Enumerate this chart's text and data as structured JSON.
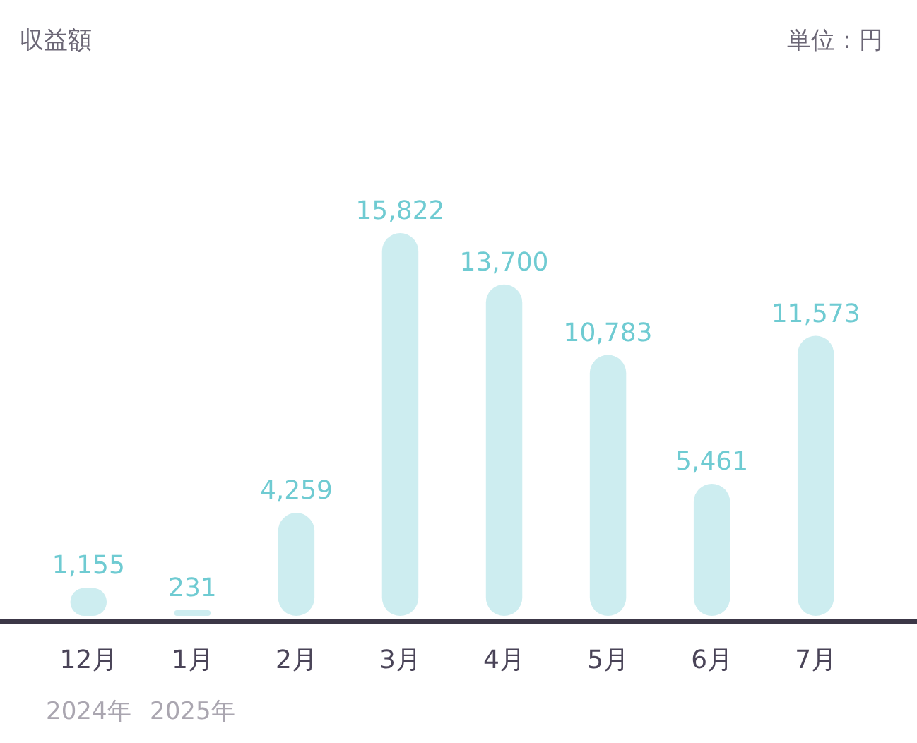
{
  "chart_data": {
    "type": "bar",
    "title": "収益額",
    "subtitle": "単位：円",
    "categories": [
      "12月",
      "1月",
      "2月",
      "3月",
      "4月",
      "5月",
      "6月",
      "7月"
    ],
    "values": [
      1155,
      231,
      4259,
      15822,
      13700,
      10783,
      5461,
      11573
    ],
    "value_labels": [
      "1,155",
      "231",
      "4,259",
      "15,822",
      "13,700",
      "10,783",
      "5,461",
      "11,573"
    ],
    "color": "#cdedf0",
    "tick_labels": "x",
    "annotations": [
      "2024年",
      "2025年"
    ]
  }
}
